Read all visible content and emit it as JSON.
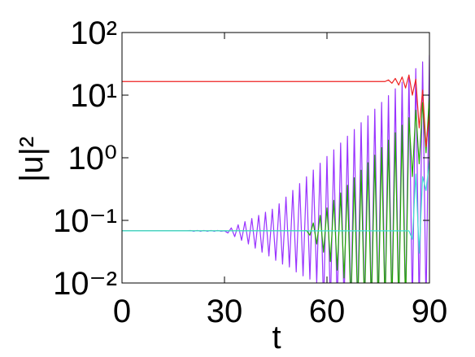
{
  "chart_data": {
    "type": "line",
    "x_label": "t",
    "y_label": "|u|²",
    "log_y": true,
    "xlim": [
      0,
      90
    ],
    "ylim": [
      0.01,
      100
    ],
    "xticks": [
      0,
      30,
      60,
      90
    ],
    "yticks": [
      {
        "value": 0.01,
        "label": "10⁻²"
      },
      {
        "value": 0.1,
        "label": "10⁻¹"
      },
      {
        "value": 1,
        "label": "10⁰"
      },
      {
        "value": 10,
        "label": "10¹"
      },
      {
        "value": 100,
        "label": "10²"
      }
    ],
    "x": [
      0,
      1,
      2,
      3,
      4,
      5,
      6,
      7,
      8,
      9,
      10,
      11,
      12,
      13,
      14,
      15,
      16,
      17,
      18,
      19,
      20,
      21,
      22,
      23,
      24,
      25,
      26,
      27,
      28,
      29,
      30,
      31,
      32,
      33,
      34,
      35,
      36,
      37,
      38,
      39,
      40,
      41,
      42,
      43,
      44,
      45,
      46,
      47,
      48,
      49,
      50,
      51,
      52,
      53,
      54,
      55,
      56,
      57,
      58,
      59,
      60,
      61,
      62,
      63,
      64,
      65,
      66,
      67,
      68,
      69,
      70,
      71,
      72,
      73,
      74,
      75,
      76,
      77,
      78,
      79,
      80,
      81,
      82,
      83,
      84,
      85,
      86,
      87,
      88,
      89,
      90
    ],
    "series": [
      {
        "color": "#9933ff",
        "values": [
          0.068,
          0.068,
          0.068,
          0.068,
          0.068,
          0.068,
          0.068,
          0.068,
          0.068,
          0.068,
          0.068,
          0.068,
          0.068,
          0.068,
          0.068,
          0.068,
          0.068,
          0.068,
          0.068,
          0.068,
          0.069,
          0.067,
          0.069,
          0.067,
          0.069,
          0.067,
          0.069,
          0.067,
          0.069,
          0.067,
          0.068,
          0.063,
          0.0759,
          0.055,
          0.0851,
          0.048,
          0.0955,
          0.042,
          0.107,
          0.036,
          0.12,
          0.031,
          0.135,
          0.027,
          0.151,
          0.023,
          0.184,
          0.02,
          0.236,
          0.018,
          0.302,
          0.015,
          0.387,
          0.013,
          0.497,
          0.0115,
          0.637,
          0.01,
          0.817,
          0.004,
          1.05,
          0.004,
          1.34,
          0.004,
          1.72,
          0.004,
          2.21,
          0.004,
          2.83,
          0.004,
          3.63,
          0.004,
          4.66,
          0.004,
          5.97,
          0.004,
          7.66,
          0.004,
          9.82,
          0.004,
          12.6,
          0.004,
          16.1,
          0.004,
          20.7,
          0.004,
          26.5,
          0.004,
          34.0,
          0.004,
          43.7
        ]
      },
      {
        "color": "#22aa00",
        "values": [
          0.068,
          0.068,
          0.068,
          0.068,
          0.068,
          0.068,
          0.068,
          0.068,
          0.068,
          0.068,
          0.068,
          0.068,
          0.068,
          0.068,
          0.068,
          0.068,
          0.068,
          0.068,
          0.068,
          0.068,
          0.068,
          0.068,
          0.068,
          0.068,
          0.068,
          0.068,
          0.068,
          0.068,
          0.068,
          0.068,
          0.068,
          0.068,
          0.068,
          0.068,
          0.068,
          0.068,
          0.068,
          0.068,
          0.068,
          0.068,
          0.068,
          0.068,
          0.068,
          0.068,
          0.068,
          0.068,
          0.068,
          0.068,
          0.068,
          0.068,
          0.068,
          0.068,
          0.068,
          0.068,
          0.069,
          0.058,
          0.091,
          0.042,
          0.12,
          0.031,
          0.158,
          0.022,
          0.209,
          0.016,
          0.275,
          0.012,
          0.363,
          0.004,
          0.479,
          0.004,
          0.631,
          0.004,
          0.832,
          0.004,
          1.1,
          0.004,
          1.45,
          0.004,
          1.91,
          0.004,
          2.51,
          0.004,
          3.31,
          0.004,
          4.37,
          0.5,
          5.75,
          0.8,
          7.59,
          1.2,
          10
        ]
      },
      {
        "color": "#40e0d0",
        "values": [
          0.068,
          0.068,
          0.068,
          0.068,
          0.068,
          0.068,
          0.068,
          0.068,
          0.068,
          0.068,
          0.068,
          0.068,
          0.068,
          0.068,
          0.068,
          0.068,
          0.068,
          0.068,
          0.068,
          0.068,
          0.068,
          0.068,
          0.068,
          0.068,
          0.068,
          0.068,
          0.068,
          0.068,
          0.068,
          0.068,
          0.068,
          0.068,
          0.068,
          0.068,
          0.068,
          0.068,
          0.068,
          0.068,
          0.068,
          0.068,
          0.068,
          0.068,
          0.068,
          0.068,
          0.068,
          0.068,
          0.068,
          0.068,
          0.068,
          0.068,
          0.068,
          0.068,
          0.068,
          0.068,
          0.068,
          0.068,
          0.068,
          0.068,
          0.068,
          0.068,
          0.068,
          0.068,
          0.068,
          0.068,
          0.068,
          0.068,
          0.068,
          0.068,
          0.068,
          0.068,
          0.068,
          0.068,
          0.068,
          0.068,
          0.068,
          0.068,
          0.068,
          0.068,
          0.068,
          0.068,
          0.068,
          0.068,
          0.068,
          0.068,
          0.068,
          0.05,
          0.55,
          0.03,
          0.5,
          0.3,
          0.9
        ]
      },
      {
        "color": "#ee2222",
        "values": [
          16.5,
          16.5,
          16.5,
          16.5,
          16.5,
          16.5,
          16.5,
          16.5,
          16.5,
          16.5,
          16.5,
          16.5,
          16.5,
          16.5,
          16.5,
          16.5,
          16.5,
          16.5,
          16.5,
          16.5,
          16.5,
          16.5,
          16.5,
          16.5,
          16.5,
          16.5,
          16.5,
          16.5,
          16.5,
          16.5,
          16.5,
          16.5,
          16.5,
          16.5,
          16.5,
          16.5,
          16.5,
          16.5,
          16.5,
          16.5,
          16.5,
          16.5,
          16.5,
          16.5,
          16.5,
          16.5,
          16.5,
          16.5,
          16.5,
          16.5,
          16.5,
          16.5,
          16.5,
          16.5,
          16.5,
          16.5,
          16.5,
          16.5,
          16.5,
          16.5,
          16.5,
          16.5,
          16.5,
          16.5,
          16.5,
          16.5,
          16.5,
          16.5,
          16.5,
          16.5,
          16.5,
          16.5,
          16.5,
          16.5,
          16.5,
          16.5,
          16.5,
          16.5,
          17.5,
          15.5,
          18.5,
          14.5,
          19.5,
          13,
          21,
          10,
          18,
          3,
          12,
          1.5,
          5
        ]
      }
    ]
  }
}
